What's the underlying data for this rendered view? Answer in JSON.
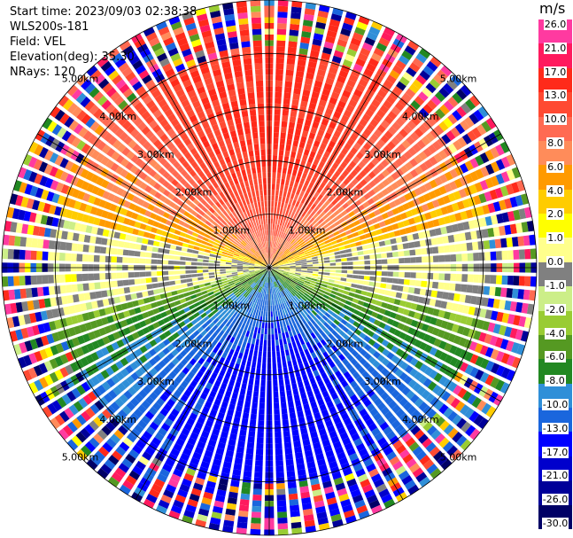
{
  "header": {
    "start_time": "Start time: 2023/09/03 02:38:38",
    "instrument": "WLS200s-181",
    "field": "Field: VEL",
    "elevation": "Elevation(deg): 35.30",
    "nrays": "NRays: 120"
  },
  "colorbar": {
    "unit": "m/s",
    "ticks": [
      "26.0",
      "21.0",
      "17.0",
      "13.0",
      "10.0",
      "8.0",
      "6.0",
      "4.0",
      "2.0",
      "1.0",
      "0.0",
      "-1.0",
      "-2.0",
      "-4.0",
      "-6.0",
      "-8.0",
      "-10.0",
      "-13.0",
      "-17.0",
      "-21.0",
      "-26.0",
      "-30.0"
    ],
    "colors": [
      "#ff3aa0",
      "#ff1a5e",
      "#ff2a1a",
      "#ff4a32",
      "#ff6a52",
      "#ff8c5a",
      "#ff9a00",
      "#ffcc00",
      "#ffff00",
      "#ffff8c",
      "#808080",
      "#ccee88",
      "#99cc33",
      "#559922",
      "#228822",
      "#2f8fd8",
      "#1a66dd",
      "#0000ff",
      "#0000cc",
      "#000099",
      "#000066"
    ]
  },
  "chart_data": {
    "type": "heatmap",
    "title": "",
    "field": "VEL",
    "units": "m/s",
    "elevation_deg": 35.3,
    "n_rays": 120,
    "range_rings_km": [
      1.0,
      2.0,
      3.0,
      4.0,
      5.0
    ],
    "ring_labels": [
      "1.00km",
      "2.00km",
      "3.00km",
      "4.00km",
      "5.00km"
    ],
    "max_range_km": 5.0,
    "color_scale_bounds": [
      -30.0,
      -26.0,
      -21.0,
      -17.0,
      -13.0,
      -10.0,
      -8.0,
      -6.0,
      -4.0,
      -2.0,
      -1.0,
      0.0,
      1.0,
      2.0,
      4.0,
      6.0,
      8.0,
      10.0,
      13.0,
      17.0,
      21.0,
      26.0
    ],
    "velocity_pattern": {
      "north_sector_ms": [
        6.0,
        13.0
      ],
      "south_sector_ms": [
        -17.0,
        -8.0
      ],
      "east_west_sector_ms": [
        -1.0,
        1.0
      ],
      "outer_ring_noise": true
    }
  }
}
